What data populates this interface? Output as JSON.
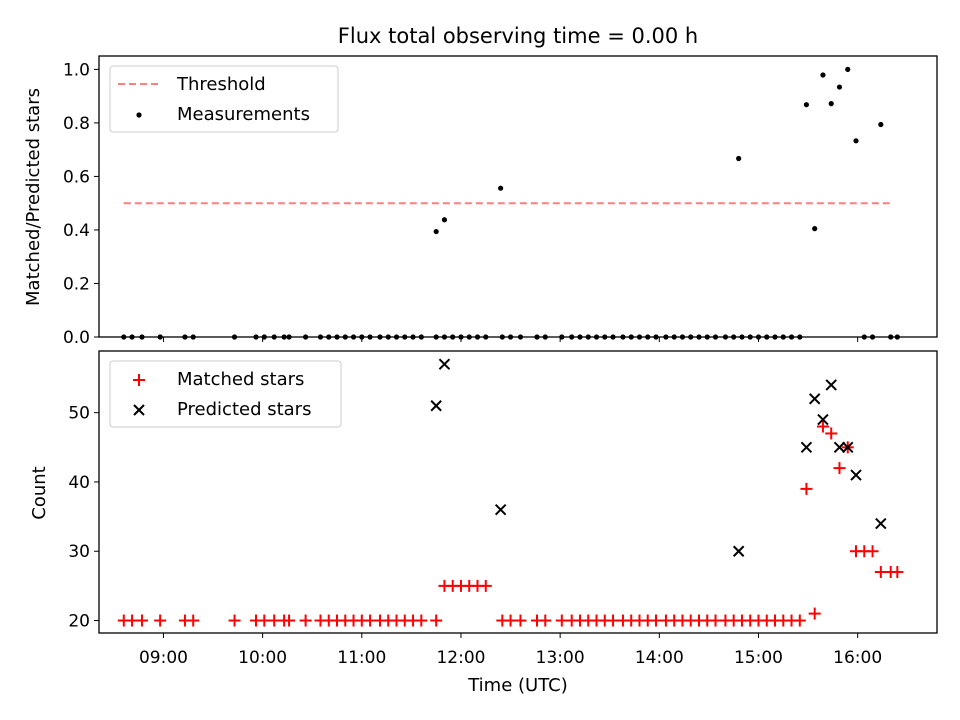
{
  "chart_data": [
    {
      "type": "scatter",
      "title": "Flux total observing time = 0.00 h",
      "xlabel": "",
      "ylabel": "Matched/Predicted stars",
      "xlim": [
        "08:21",
        "16:48"
      ],
      "ylim": [
        0,
        1.05
      ],
      "xticks": [
        "09:00",
        "10:00",
        "11:00",
        "12:00",
        "13:00",
        "14:00",
        "15:00",
        "16:00"
      ],
      "yticks": [
        "0.0",
        "0.2",
        "0.4",
        "0.6",
        "0.8",
        "1.0"
      ],
      "grid": false,
      "legend": "top-left",
      "threshold": {
        "name": "Threshold",
        "value": 0.5,
        "x": [
          "08:36",
          "16:21"
        ],
        "color": "#ff7f7f"
      },
      "series": [
        {
          "name": "Measurements",
          "marker": "dot",
          "color": "#000000",
          "x": [
            "08:36",
            "08:41",
            "08:47",
            "08:58",
            "09:13",
            "09:18",
            "09:43",
            "09:56",
            "10:01",
            "10:07",
            "10:13",
            "10:16",
            "10:26",
            "10:35",
            "10:40",
            "10:45",
            "10:50",
            "10:55",
            "11:00",
            "11:05",
            "11:11",
            "11:16",
            "11:21",
            "11:26",
            "11:31",
            "11:36",
            "11:45",
            "11:50",
            "11:55",
            "12:00",
            "12:05",
            "12:10",
            "12:15",
            "12:25",
            "12:30",
            "12:36",
            "12:46",
            "12:51",
            "13:01",
            "13:07",
            "13:12",
            "13:17",
            "13:22",
            "13:27",
            "13:32",
            "13:38",
            "13:43",
            "13:48",
            "13:53",
            "13:58",
            "14:04",
            "14:09",
            "14:14",
            "14:19",
            "14:24",
            "14:29",
            "14:34",
            "14:40",
            "14:45",
            "14:50",
            "14:55",
            "15:00",
            "15:05",
            "15:10",
            "15:15",
            "15:20",
            "15:25",
            "14:48",
            "15:29",
            "15:34",
            "15:39",
            "15:44",
            "15:49",
            "15:54",
            "15:59",
            "16:04",
            "16:09",
            "16:14",
            "16:20",
            "16:24",
            "11:45",
            "11:50",
            "12:24"
          ],
          "y": [
            0,
            0,
            0,
            0,
            0,
            0,
            0,
            0,
            0,
            0,
            0,
            0,
            0,
            0,
            0,
            0,
            0,
            0,
            0,
            0,
            0,
            0,
            0,
            0,
            0,
            0,
            0,
            0,
            0,
            0,
            0,
            0,
            0,
            0,
            0,
            0,
            0,
            0,
            0,
            0,
            0,
            0,
            0,
            0,
            0,
            0,
            0,
            0,
            0,
            0,
            0,
            0,
            0,
            0,
            0,
            0,
            0,
            0,
            0,
            0,
            0,
            0,
            0,
            0,
            0,
            0,
            0,
            0.667,
            0.868,
            0.405,
            0.979,
            0.872,
            0.934,
            1.0,
            0.733,
            0,
            0,
            0.794,
            0,
            0,
            0.394,
            0.438,
            0.556
          ]
        }
      ]
    },
    {
      "type": "scatter",
      "title": "",
      "xlabel": "Time (UTC)",
      "ylabel": "Count",
      "xlim": [
        "08:21",
        "16:48"
      ],
      "ylim": [
        18.2,
        58.9
      ],
      "xticks": [
        "09:00",
        "10:00",
        "11:00",
        "12:00",
        "13:00",
        "14:00",
        "15:00",
        "16:00"
      ],
      "yticks": [
        "20",
        "30",
        "40",
        "50"
      ],
      "grid": false,
      "legend": "top-left",
      "series": [
        {
          "name": "Matched stars",
          "marker": "plus",
          "color": "#ff0000",
          "x": [
            "08:36",
            "08:41",
            "08:47",
            "08:58",
            "09:13",
            "09:18",
            "09:43",
            "09:56",
            "10:01",
            "10:07",
            "10:13",
            "10:16",
            "10:26",
            "10:35",
            "10:40",
            "10:45",
            "10:50",
            "10:55",
            "11:00",
            "11:05",
            "11:11",
            "11:16",
            "11:21",
            "11:26",
            "11:31",
            "11:36",
            "11:45",
            "11:50",
            "11:55",
            "12:00",
            "12:05",
            "12:10",
            "12:15",
            "12:25",
            "12:30",
            "12:36",
            "12:46",
            "12:51",
            "13:01",
            "13:07",
            "13:12",
            "13:17",
            "13:22",
            "13:27",
            "13:32",
            "13:38",
            "13:43",
            "13:48",
            "13:53",
            "13:58",
            "14:04",
            "14:09",
            "14:14",
            "14:19",
            "14:24",
            "14:29",
            "14:34",
            "14:40",
            "14:45",
            "14:50",
            "14:55",
            "15:00",
            "15:05",
            "15:10",
            "15:15",
            "15:20",
            "15:25",
            "15:29",
            "15:34",
            "15:39",
            "15:44",
            "15:49",
            "15:54",
            "15:59",
            "16:04",
            "16:09",
            "16:14",
            "16:20",
            "16:24"
          ],
          "y": [
            20,
            20,
            20,
            20,
            20,
            20,
            20,
            20,
            20,
            20,
            20,
            20,
            20,
            20,
            20,
            20,
            20,
            20,
            20,
            20,
            20,
            20,
            20,
            20,
            20,
            20,
            20,
            25,
            25,
            25,
            25,
            25,
            25,
            20,
            20,
            20,
            20,
            20,
            20,
            20,
            20,
            20,
            20,
            20,
            20,
            20,
            20,
            20,
            20,
            20,
            20,
            20,
            20,
            20,
            20,
            20,
            20,
            20,
            20,
            20,
            20,
            20,
            20,
            20,
            20,
            20,
            20,
            39,
            21,
            48,
            47,
            42,
            45,
            30,
            30,
            30,
            27,
            27,
            27
          ]
        },
        {
          "name": "Predicted stars",
          "marker": "x",
          "color": "#000000",
          "x": [
            "11:45",
            "11:50",
            "12:24",
            "14:48",
            "15:29",
            "15:34",
            "15:39",
            "15:44",
            "15:49",
            "15:54",
            "15:59",
            "16:14"
          ],
          "y": [
            51,
            57,
            36,
            30,
            45,
            52,
            49,
            54,
            45,
            45,
            41,
            34
          ]
        }
      ]
    }
  ]
}
